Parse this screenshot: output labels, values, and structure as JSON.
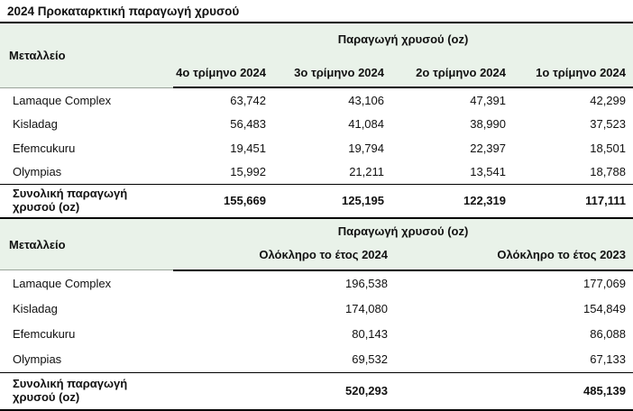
{
  "page_title": "2024 Προκαταρκτική παραγωγή χρυσού",
  "colors": {
    "header_band_bg": "#e9f2e9",
    "rule_dark": "#000000",
    "rule_light": "#9aa49a",
    "text": "#111111",
    "background": "#ffffff"
  },
  "tables": [
    {
      "mine_header": "Μεταλλείο",
      "group_header": "Παραγωγή χρυσού (oz)",
      "columns": [
        "4ο τρίμηνο 2024",
        "3ο τρίμηνο 2024",
        "2ο τρίμηνο 2024",
        "1ο τρίμηνο 2024"
      ],
      "rows": [
        {
          "name": "Lamaque Complex",
          "values": [
            "63,742",
            "43,106",
            "47,391",
            "42,299"
          ]
        },
        {
          "name": "Kisladag",
          "values": [
            "56,483",
            "41,084",
            "38,990",
            "37,523"
          ]
        },
        {
          "name": "Efemcukuru",
          "values": [
            "19,451",
            "19,794",
            "22,397",
            "18,501"
          ]
        },
        {
          "name": "Olympias",
          "values": [
            "15,992",
            "21,211",
            "13,541",
            "18,788"
          ]
        }
      ],
      "total": {
        "label": "Συνολική παραγωγή χρυσού (oz)",
        "values": [
          "155,669",
          "125,195",
          "122,319",
          "117,111"
        ]
      }
    },
    {
      "mine_header": "Μεταλλείο",
      "group_header": "Παραγωγή χρυσού (oz)",
      "columns": [
        "Ολόκληρο το έτος 2024",
        "Ολόκληρο το έτος 2023"
      ],
      "rows": [
        {
          "name": "Lamaque Complex",
          "values": [
            "196,538",
            "177,069"
          ]
        },
        {
          "name": "Kisladag",
          "values": [
            "174,080",
            "154,849"
          ]
        },
        {
          "name": "Efemcukuru",
          "values": [
            "80,143",
            "86,088"
          ]
        },
        {
          "name": "Olympias",
          "values": [
            "69,532",
            "67,133"
          ]
        }
      ],
      "total": {
        "label": "Συνολική παραγωγή χρυσού (oz)",
        "values": [
          "520,293",
          "485,139"
        ]
      }
    }
  ]
}
